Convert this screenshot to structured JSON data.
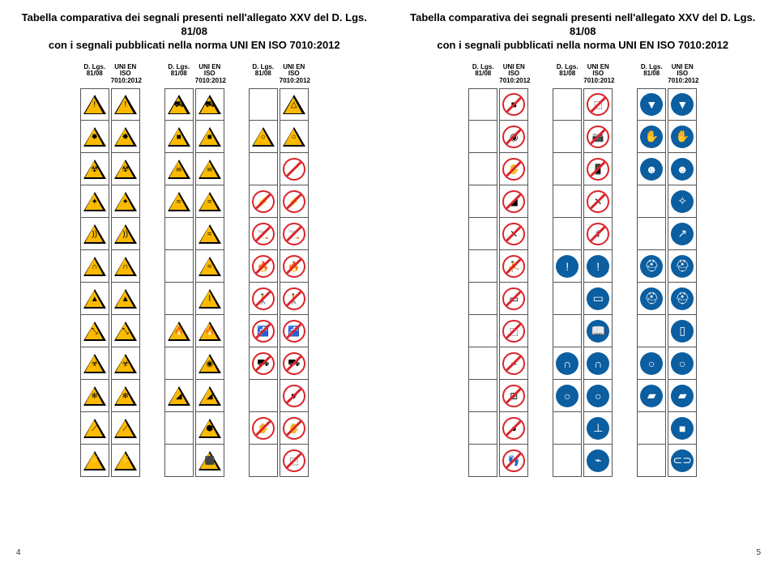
{
  "page_left": {
    "title_l1": "Tabella comparativa dei segnali presenti nell'allegato XXV del D. Lgs. 81/08",
    "title_l2": "con i segnali pubblicati nella norma UNI EN ISO 7010:2012",
    "header_a": "D. Lgs. 81/08",
    "header_b": "UNI EN ISO 7010:2012",
    "page_num": "4",
    "columns": [
      {
        "rows": [
          {
            "t": "warn",
            "g": "!",
            "t2": "warn",
            "g2": "!"
          },
          {
            "t": "warn",
            "g": "✸",
            "t2": "warn",
            "g2": "✸"
          },
          {
            "t": "warn",
            "g": "☢",
            "t2": "warn",
            "g2": "☢"
          },
          {
            "t": "warn",
            "g": "✦",
            "t2": "warn",
            "g2": "✦"
          },
          {
            "t": "warn",
            "g": "))",
            "t2": "warn",
            "g2": "))"
          },
          {
            "t": "warn",
            "g": "∩",
            "t2": "warn",
            "g2": "∩"
          },
          {
            "t": "warn",
            "g": "▲",
            "t2": "warn",
            "g2": "▲"
          },
          {
            "t": "warn",
            "g": "⤡",
            "t2": "warn",
            "g2": "⤡"
          },
          {
            "t": "warn",
            "g": "☣",
            "t2": "warn",
            "g2": "☣"
          },
          {
            "t": "warn",
            "g": "❄",
            "t2": "warn",
            "g2": "❄"
          },
          {
            "t": "warn",
            "g": "⟋",
            "t2": "warn",
            "g2": "⟋"
          },
          {
            "t": "warn",
            "g": "⚡",
            "t2": "warn",
            "g2": "⚡"
          }
        ]
      },
      {
        "rows": [
          {
            "t": "warn",
            "g": "⛟",
            "t2": "warn",
            "g2": "⛟"
          },
          {
            "t": "warn",
            "g": "■",
            "t2": "warn",
            "g2": "■"
          },
          {
            "t": "warn",
            "g": "☠",
            "t2": "warn",
            "g2": "☠"
          },
          {
            "t": "warn",
            "g": "≈",
            "t2": "warn",
            "g2": "≈"
          },
          {
            "t": "empty",
            "t2": "warn",
            "g2": "≈"
          },
          {
            "t": "empty",
            "t2": "warn",
            "g2": "≈"
          },
          {
            "t": "empty",
            "t2": "warn",
            "g2": "⌇"
          },
          {
            "t": "warn",
            "g": "🔥",
            "t2": "warn",
            "g2": "🔥"
          },
          {
            "t": "empty",
            "t2": "warn",
            "g2": "◉"
          },
          {
            "t": "warn",
            "g": "◢",
            "t2": "warn",
            "g2": "◢"
          },
          {
            "t": "empty",
            "t2": "warn",
            "g2": "⬢"
          },
          {
            "t": "empty",
            "t2": "warn",
            "g2": "⬛"
          }
        ]
      },
      {
        "rows": [
          {
            "t": "empty",
            "t2": "warn",
            "g2": "△"
          },
          {
            "t": "warn",
            "g": "○",
            "t2": "warn",
            "g2": "○"
          },
          {
            "t": "empty",
            "t2": "proh",
            "g2": ""
          },
          {
            "t": "proh",
            "g": "⚡",
            "t2": "proh",
            "g2": "⚡"
          },
          {
            "t": "proh",
            "g": "🚬",
            "t2": "proh",
            "g2": "🚬"
          },
          {
            "t": "proh",
            "g": "🔥",
            "t2": "proh",
            "g2": "🔥"
          },
          {
            "t": "proh",
            "g": "🚶",
            "t2": "proh",
            "g2": "🚶"
          },
          {
            "t": "proh",
            "g": "🚰",
            "t2": "proh",
            "g2": "🚰"
          },
          {
            "t": "proh",
            "g": "⛟",
            "t2": "proh",
            "g2": "⛟"
          },
          {
            "t": "empty",
            "t2": "proh",
            "g2": "♥"
          },
          {
            "t": "proh",
            "g": "✋",
            "t2": "proh",
            "g2": "✋"
          },
          {
            "t": "empty",
            "t2": "proh",
            "g2": "⬚"
          }
        ]
      }
    ]
  },
  "page_right": {
    "title_l1": "Tabella comparativa dei segnali presenti nell'allegato XXV del D. Lgs. 81/08",
    "title_l2": "con i segnali pubblicati nella norma UNI EN ISO 7010:2012",
    "header_a": "D. Lgs. 81/08",
    "header_b": "UNI EN ISO 7010:2012",
    "page_num": "5",
    "columns": [
      {
        "rows": [
          {
            "t": "empty",
            "t2": "proh",
            "g2": "■"
          },
          {
            "t": "empty",
            "t2": "proh",
            "g2": "◉"
          },
          {
            "t": "empty",
            "t2": "proh",
            "g2": "✋"
          },
          {
            "t": "empty",
            "t2": "proh",
            "g2": "◢"
          },
          {
            "t": "empty",
            "t2": "proh",
            "g2": "✕"
          },
          {
            "t": "empty",
            "t2": "proh",
            "g2": "⛹"
          },
          {
            "t": "empty",
            "t2": "proh",
            "g2": "▭"
          },
          {
            "t": "empty",
            "t2": "proh",
            "g2": "⬚"
          },
          {
            "t": "empty",
            "t2": "proh",
            "g2": "⌁"
          },
          {
            "t": "empty",
            "t2": "proh",
            "g2": "⊞"
          },
          {
            "t": "empty",
            "t2": "proh",
            "g2": "●"
          },
          {
            "t": "empty",
            "t2": "proh",
            "g2": "👣"
          }
        ]
      },
      {
        "rows": [
          {
            "t": "empty",
            "t2": "proh",
            "g2": "⬚"
          },
          {
            "t": "empty",
            "t2": "proh",
            "g2": "📷"
          },
          {
            "t": "empty",
            "t2": "proh",
            "g2": "📱"
          },
          {
            "t": "empty",
            "t2": "proh",
            "g2": "✕"
          },
          {
            "t": "empty",
            "t2": "proh",
            "g2": "⚕"
          },
          {
            "t": "mand",
            "g": "!",
            "t2": "mand",
            "g2": "!"
          },
          {
            "t": "empty",
            "t2": "mand",
            "g2": "▭"
          },
          {
            "t": "empty",
            "t2": "mand",
            "g2": "📖"
          },
          {
            "t": "mand",
            "g": "∩",
            "t2": "mand",
            "g2": "∩"
          },
          {
            "t": "mand",
            "g": "○",
            "t2": "mand",
            "g2": "○"
          },
          {
            "t": "empty",
            "t2": "mand",
            "g2": "⊥"
          },
          {
            "t": "empty",
            "t2": "mand",
            "g2": "⌁"
          }
        ]
      },
      {
        "rows": [
          {
            "t": "mand",
            "g": "▼",
            "t2": "mand",
            "g2": "▼"
          },
          {
            "t": "mand",
            "g": "✋",
            "t2": "mand",
            "g2": "✋"
          },
          {
            "t": "mand",
            "g": "☻",
            "t2": "mand",
            "g2": "☻"
          },
          {
            "t": "empty",
            "t2": "mand",
            "g2": "✧"
          },
          {
            "t": "empty",
            "t2": "mand",
            "g2": "↗"
          },
          {
            "t": "mand",
            "g": "⛑",
            "t2": "mand",
            "g2": "⛑"
          },
          {
            "t": "mand",
            "g": "⛑",
            "t2": "mand",
            "g2": "⛑"
          },
          {
            "t": "empty",
            "t2": "mand",
            "g2": "▯"
          },
          {
            "t": "mand",
            "g": "○",
            "t2": "mand",
            "g2": "○"
          },
          {
            "t": "mand",
            "g": "▰",
            "t2": "mand",
            "g2": "▰"
          },
          {
            "t": "empty",
            "t2": "mand",
            "g2": "■"
          },
          {
            "t": "empty",
            "t2": "mand",
            "g2": "⊂⊃"
          }
        ]
      }
    ]
  }
}
